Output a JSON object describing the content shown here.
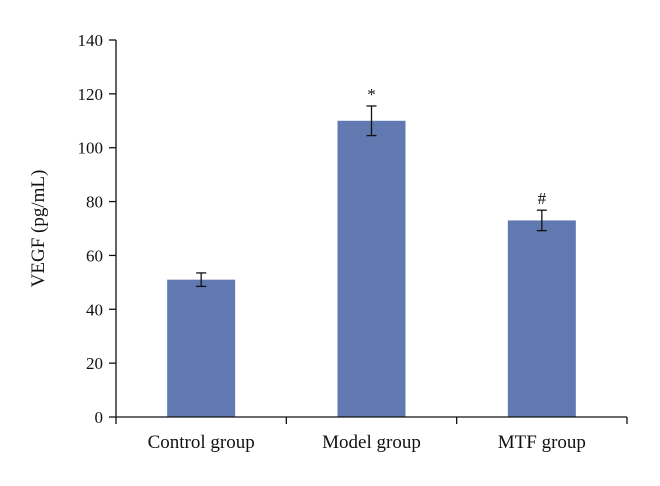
{
  "chart_data": {
    "type": "bar",
    "categories": [
      "Control group",
      "Model group",
      "MTF group"
    ],
    "values": [
      51,
      110,
      73
    ],
    "errors": [
      2.5,
      5.5,
      3.8
    ],
    "annotations": [
      "",
      "*",
      "#"
    ],
    "xlabel": "",
    "ylabel": "VEGF (pg/mL)",
    "ylim": [
      0,
      140
    ],
    "yticks": [
      "0",
      "20",
      "40",
      "60",
      "80",
      "100",
      "120",
      "140"
    ],
    "grid": false,
    "bar_color": "#6179b1"
  }
}
